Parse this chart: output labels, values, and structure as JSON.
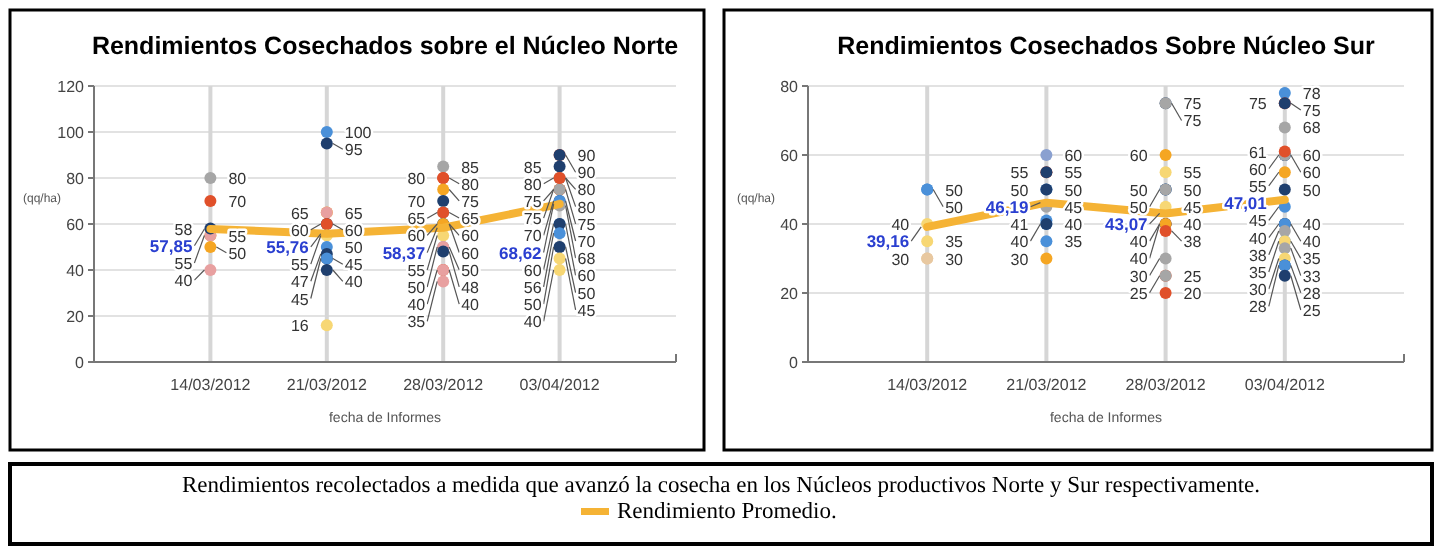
{
  "chart_data": [
    {
      "type": "scatter",
      "title": "Rendimientos Cosechados sobre el Núcleo Norte",
      "xlabel": "fecha de Informes",
      "ylabel": "(qq/ha)",
      "categories": [
        "14/03/2012",
        "21/03/2012",
        "28/03/2012",
        "03/04/2012"
      ],
      "ylim": [
        0,
        120
      ],
      "yticks": [
        0,
        20,
        40,
        60,
        80,
        100,
        120
      ],
      "grid": true,
      "data_labels": true,
      "series": [
        {
          "type": "scatter",
          "marker": "circle",
          "x": [
            "14/03/2012",
            "14/03/2012",
            "14/03/2012",
            "14/03/2012",
            "14/03/2012",
            "14/03/2012",
            "14/03/2012"
          ],
          "values": [
            80,
            70,
            55,
            55,
            58,
            50,
            40
          ],
          "colors": [
            "#a6a6a6",
            "#e0502a",
            "#f5a623",
            "#e8a0a0",
            "#1f3f6e",
            "#f5a623",
            "#e8a0a0"
          ]
        },
        {
          "type": "scatter",
          "marker": "circle",
          "x": [
            "21/03/2012",
            "21/03/2012",
            "21/03/2012",
            "21/03/2012",
            "21/03/2012",
            "21/03/2012",
            "21/03/2012",
            "21/03/2012",
            "21/03/2012",
            "21/03/2012",
            "21/03/2012",
            "21/03/2012",
            "21/03/2012"
          ],
          "values": [
            100,
            95,
            65,
            65,
            60,
            60,
            55,
            50,
            47,
            45,
            45,
            40,
            16
          ],
          "colors": [
            "#4a90d9",
            "#1f3f6e",
            "#f5a623",
            "#e8a0a0",
            "#1f3f6e",
            "#e0502a",
            "#f7d774",
            "#4a90d9",
            "#1f3f6e",
            "#1f3f6e",
            "#4a90d9",
            "#1f3f6e",
            "#f7d774"
          ]
        },
        {
          "type": "scatter",
          "marker": "circle",
          "x": [
            "28/03/2012",
            "28/03/2012",
            "28/03/2012",
            "28/03/2012",
            "28/03/2012",
            "28/03/2012",
            "28/03/2012",
            "28/03/2012",
            "28/03/2012",
            "28/03/2012",
            "28/03/2012",
            "28/03/2012",
            "28/03/2012",
            "28/03/2012",
            "28/03/2012",
            "28/03/2012",
            "28/03/2012"
          ],
          "values": [
            85,
            80,
            80,
            75,
            70,
            65,
            65,
            60,
            60,
            60,
            55,
            50,
            50,
            48,
            40,
            40,
            35
          ],
          "colors": [
            "#a6a6a6",
            "#e0502a",
            "#e0502a",
            "#f5a623",
            "#1f3f6e",
            "#a6a6a6",
            "#e0502a",
            "#4a90d9",
            "#1f3f6e",
            "#f5a623",
            "#f7d774",
            "#a6a6a6",
            "#e8a0a0",
            "#1f3f6e",
            "#e0502a",
            "#e8a0a0",
            "#e8a0a0"
          ]
        },
        {
          "type": "scatter",
          "marker": "circle",
          "x": [
            "03/04/2012",
            "03/04/2012",
            "03/04/2012",
            "03/04/2012",
            "03/04/2012",
            "03/04/2012",
            "03/04/2012",
            "03/04/2012",
            "03/04/2012",
            "03/04/2012",
            "03/04/2012",
            "03/04/2012",
            "03/04/2012",
            "03/04/2012",
            "03/04/2012",
            "03/04/2012",
            "03/04/2012",
            "03/04/2012",
            "03/04/2012"
          ],
          "values": [
            90,
            90,
            80,
            80,
            85,
            75,
            75,
            75,
            70,
            70,
            80,
            60,
            60,
            68,
            56,
            50,
            50,
            45,
            40
          ],
          "colors": [
            "#e0502a",
            "#1f3f6e",
            "#e0502a",
            "#a6a6a6",
            "#1f3f6e",
            "#f5a623",
            "#e0502a",
            "#a6a6a6",
            "#1f3f6e",
            "#4a90d9",
            "#e0502a",
            "#4a90d9",
            "#1f3f6e",
            "#a6a6a6",
            "#4a90d9",
            "#a6a6a6",
            "#1f3f6e",
            "#f7d774",
            "#f7d774"
          ]
        },
        {
          "type": "line",
          "color": "#f5b335",
          "values": [
            57.85,
            55.76,
            58.37,
            68.62
          ],
          "value_labels": [
            "57,85",
            "55,76",
            "58,37",
            "68,62"
          ]
        }
      ]
    },
    {
      "type": "scatter",
      "title": "Rendimientos Cosechados Sobre Núcleo Sur",
      "xlabel": "fecha de Informes",
      "ylabel": "(qq/ha)",
      "categories": [
        "14/03/2012",
        "21/03/2012",
        "28/03/2012",
        "03/04/2012"
      ],
      "ylim": [
        0,
        80
      ],
      "yticks": [
        0,
        20,
        40,
        60,
        80
      ],
      "grid": true,
      "data_labels": true,
      "series": [
        {
          "type": "scatter",
          "marker": "circle",
          "x": [
            "14/03/2012",
            "14/03/2012",
            "14/03/2012",
            "14/03/2012",
            "14/03/2012",
            "14/03/2012"
          ],
          "values": [
            50,
            50,
            40,
            35,
            30,
            30
          ],
          "colors": [
            "#4a90d9",
            "#4a90d9",
            "#f7d774",
            "#f7d774",
            "#e8c8a0",
            "#e8c8a0"
          ]
        },
        {
          "type": "scatter",
          "marker": "circle",
          "x": [
            "21/03/2012",
            "21/03/2012",
            "21/03/2012",
            "21/03/2012",
            "21/03/2012",
            "21/03/2012",
            "21/03/2012",
            "21/03/2012",
            "21/03/2012",
            "21/03/2012",
            "21/03/2012"
          ],
          "values": [
            60,
            55,
            55,
            50,
            50,
            45,
            41,
            40,
            40,
            35,
            30
          ],
          "colors": [
            "#8aa0d0",
            "#e0502a",
            "#1f3f6e",
            "#4a90d9",
            "#1f3f6e",
            "#a6a6a6",
            "#4a90d9",
            "#4a90d9",
            "#1f3f6e",
            "#4a90d9",
            "#f5a623"
          ]
        },
        {
          "type": "scatter",
          "marker": "circle",
          "x": [
            "28/03/2012",
            "28/03/2012",
            "28/03/2012",
            "28/03/2012",
            "28/03/2012",
            "28/03/2012",
            "28/03/2012",
            "28/03/2012",
            "28/03/2012",
            "28/03/2012",
            "28/03/2012",
            "28/03/2012",
            "28/03/2012",
            "28/03/2012",
            "28/03/2012",
            "28/03/2012"
          ],
          "values": [
            75,
            75,
            60,
            55,
            50,
            50,
            50,
            45,
            40,
            40,
            40,
            38,
            30,
            25,
            25,
            20
          ],
          "colors": [
            "#1f3f6e",
            "#a6a6a6",
            "#f5a623",
            "#f7d774",
            "#4a90d9",
            "#1f3f6e",
            "#a6a6a6",
            "#f7d774",
            "#e0502a",
            "#1f3f6e",
            "#f5a623",
            "#e0502a",
            "#a6a6a6",
            "#e0502a",
            "#a6a6a6",
            "#e0502a"
          ]
        },
        {
          "type": "scatter",
          "marker": "circle",
          "x": [
            "03/04/2012",
            "03/04/2012",
            "03/04/2012",
            "03/04/2012",
            "03/04/2012",
            "03/04/2012",
            "03/04/2012",
            "03/04/2012",
            "03/04/2012",
            "03/04/2012",
            "03/04/2012",
            "03/04/2012",
            "03/04/2012",
            "03/04/2012",
            "03/04/2012",
            "03/04/2012",
            "03/04/2012",
            "03/04/2012",
            "03/04/2012",
            "03/04/2012",
            "03/04/2012",
            "03/04/2012"
          ],
          "values": [
            78,
            75,
            75,
            68,
            60,
            60,
            60,
            61,
            55,
            50,
            45,
            40,
            40,
            40,
            38,
            35,
            35,
            33,
            30,
            28,
            28,
            25
          ],
          "colors": [
            "#4a90d9",
            "#e0502a",
            "#1f3f6e",
            "#a6a6a6",
            "#4a90d9",
            "#1f3f6e",
            "#a6a6a6",
            "#e0502a",
            "#f5a623",
            "#1f3f6e",
            "#4a90d9",
            "#a6a6a6",
            "#1f3f6e",
            "#4a90d9",
            "#a6a6a6",
            "#4a90d9",
            "#f7d774",
            "#a6a6a6",
            "#f7d774",
            "#1f3f6e",
            "#4a90d9",
            "#1f3f6e"
          ]
        },
        {
          "type": "line",
          "color": "#f5b335",
          "values": [
            39.16,
            46.19,
            43.07,
            47.01
          ],
          "value_labels": [
            "39,16",
            "46,19",
            "43,07",
            "47,01"
          ]
        }
      ]
    },
    {
      "type": "other",
      "annotations": [
        "Rendimientos recolectados a medida que avanzó la cosecha en los Núcleos productivos Norte y Sur respectivamente."
      ],
      "series": [
        {
          "name": "Rendimiento Promedio.",
          "color": "#f5b335"
        }
      ]
    }
  ]
}
